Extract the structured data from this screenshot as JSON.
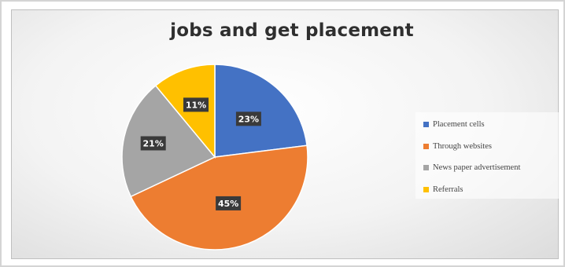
{
  "chart_data": {
    "type": "pie",
    "title": "jobs and get placement",
    "categories": [
      "Placement cells",
      "Through websites",
      "News paper advertisement",
      "Referrals"
    ],
    "values": [
      23,
      45,
      21,
      11
    ],
    "data_labels": [
      "23%",
      "45%",
      "21%",
      "11%"
    ],
    "colors": [
      "#4472c4",
      "#ed7d31",
      "#a5a5a5",
      "#ffc000"
    ],
    "legend_position": "right"
  }
}
